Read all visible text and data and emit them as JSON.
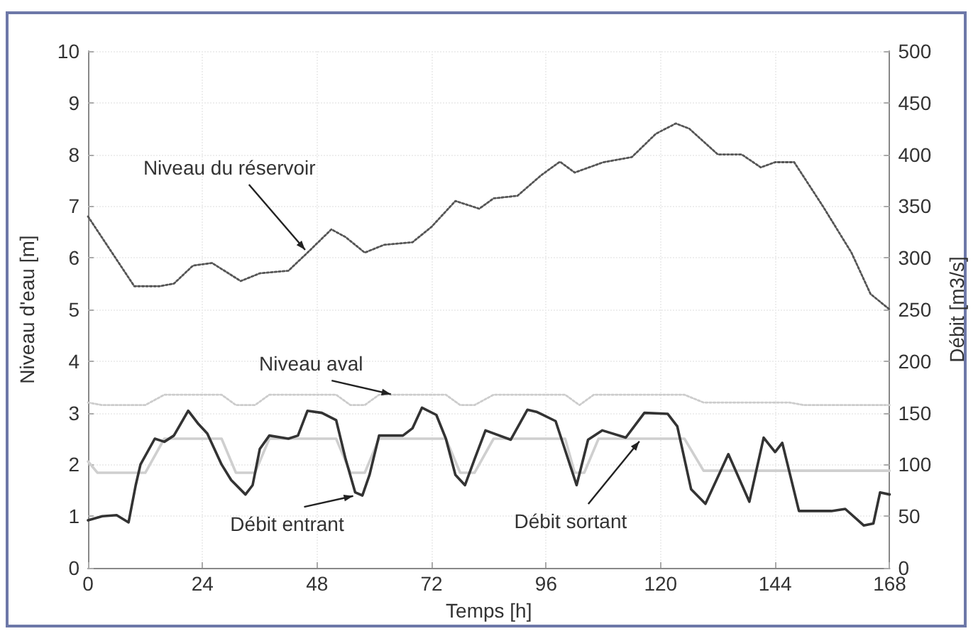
{
  "chart_data": {
    "type": "line",
    "xlabel": "Temps [h]",
    "ylabel": "Niveau d'eau [m]",
    "y2label": "Débit [m3/s]",
    "xlim": [
      0,
      168
    ],
    "xticks": [
      0,
      24,
      48,
      72,
      96,
      120,
      144,
      168
    ],
    "ylim": [
      0,
      10
    ],
    "yticks": [
      0,
      1,
      2,
      3,
      4,
      5,
      6,
      7,
      8,
      9,
      10
    ],
    "y2lim": [
      0,
      500
    ],
    "y2ticks": [
      0,
      50,
      100,
      150,
      200,
      250,
      300,
      350,
      400,
      450,
      500
    ],
    "grid": true,
    "marker": "none",
    "series": [
      {
        "color": "#555555",
        "line_style": "dotted",
        "axis": "y",
        "x": [
          0,
          9.7,
          15,
          18,
          22,
          26,
          32,
          36,
          42,
          46,
          51,
          54,
          58,
          62,
          68,
          72,
          77,
          82,
          85,
          90,
          95,
          98.9,
          102,
          108,
          114,
          119,
          123.2,
          126,
          132,
          137,
          141,
          144,
          148,
          154,
          160,
          164,
          168
        ],
        "values": [
          6.8,
          5.45,
          5.45,
          5.5,
          5.85,
          5.9,
          5.55,
          5.7,
          5.75,
          6.1,
          6.55,
          6.4,
          6.1,
          6.25,
          6.3,
          6.6,
          7.1,
          6.95,
          7.15,
          7.2,
          7.6,
          7.86,
          7.65,
          7.85,
          7.95,
          8.4,
          8.6,
          8.5,
          8.0,
          8.0,
          7.75,
          7.85,
          7.85,
          7.0,
          6.1,
          5.3,
          5.0
        ]
      },
      {
        "color": "#cccccc",
        "line_style": "dotted",
        "axis": "y",
        "x": [
          0,
          3,
          12,
          16,
          28,
          31,
          35,
          38,
          52,
          55,
          58,
          61,
          75,
          78,
          81,
          85,
          100,
          103,
          106,
          125,
          129,
          147,
          150,
          168
        ],
        "values": [
          3.2,
          3.15,
          3.15,
          3.35,
          3.35,
          3.15,
          3.15,
          3.35,
          3.35,
          3.15,
          3.15,
          3.35,
          3.35,
          3.15,
          3.15,
          3.35,
          3.35,
          3.15,
          3.35,
          3.35,
          3.2,
          3.2,
          3.15,
          3.15
        ]
      },
      {
        "color": "#cfcfcf",
        "line_style": "solid",
        "axis": "y2",
        "x": [
          0,
          2,
          12,
          16,
          28,
          31,
          35,
          38,
          52,
          55,
          58,
          61,
          75,
          78,
          81,
          85,
          100,
          102,
          104,
          107,
          125,
          129,
          168
        ],
        "values": [
          103,
          92,
          92,
          125,
          125,
          92,
          92,
          125,
          125,
          92,
          92,
          125,
          125,
          92,
          92,
          125,
          125,
          92,
          92,
          125,
          125,
          94,
          94
        ]
      },
      {
        "color": "#333333",
        "line_style": "solid",
        "axis": "y2",
        "x": [
          0,
          3,
          6,
          8.5,
          10,
          11,
          14,
          16,
          18,
          21,
          23,
          25,
          28,
          30,
          33,
          34.5,
          36,
          38,
          42,
          44,
          46,
          49,
          52,
          54,
          56,
          57.5,
          59,
          61,
          66,
          68,
          70,
          73,
          75,
          77,
          79,
          81,
          83.3,
          88.6,
          92.1,
          94,
          98,
          102.4,
          104.8,
          107.8,
          112.7,
          116.6,
          121.5,
          123.5,
          126.4,
          129.4,
          134.2,
          138.6,
          141.6,
          144,
          145.5,
          149,
          155.8,
          158.7,
          162.6,
          164.6,
          166,
          168
        ],
        "values": [
          46,
          50,
          51,
          44,
          80,
          100,
          125,
          122,
          128,
          152,
          140,
          130,
          100,
          85,
          71,
          80,
          115,
          128,
          125,
          128,
          152,
          150,
          143,
          105,
          73,
          70,
          90,
          128,
          128,
          135,
          155,
          148,
          125,
          90,
          80,
          105,
          133,
          124,
          153,
          151,
          142,
          80,
          124,
          133,
          126,
          150,
          149,
          137,
          76,
          62,
          110,
          64,
          126,
          112,
          121,
          55,
          55,
          57,
          41,
          43,
          73,
          71
        ]
      }
    ],
    "annotations": [
      {
        "text": "Niveau du réservoir",
        "x": 46,
        "y": 6.1
      },
      {
        "text": "Niveau aval",
        "x": 64,
        "y": 3.35
      },
      {
        "text": "Débit entrant",
        "x": 56,
        "y": 1.4
      },
      {
        "text": "Débit sortant",
        "x": 116,
        "y": 2.5
      }
    ]
  }
}
